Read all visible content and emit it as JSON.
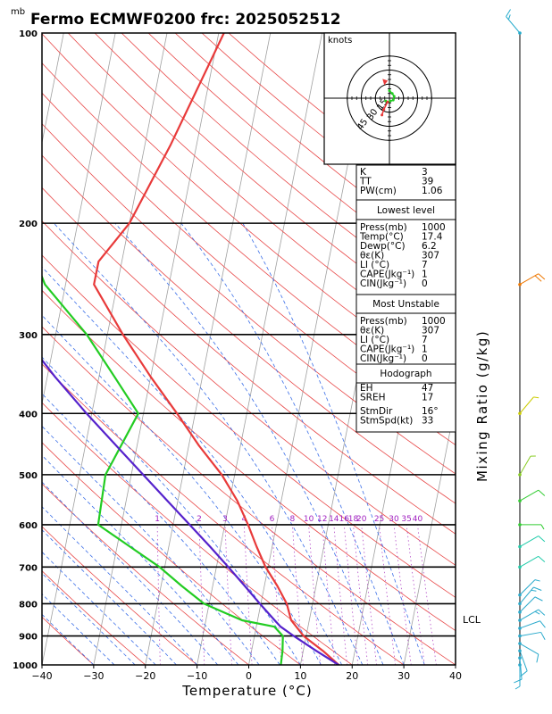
{
  "title": "Fermo  ECMWF0200  frc: 2025052512",
  "chart_data": {
    "type": "skew-t log-p sounding diagram",
    "xlabel": "Temperature (°C)",
    "ylabel": "mb",
    "right_axis_label": "Mixing Ratio (g/kg)",
    "xlim": [
      -40,
      40
    ],
    "ylim_mb": [
      1000,
      100
    ],
    "x_ticks": [
      "−40",
      "−30",
      "−20",
      "−10",
      "0",
      "10",
      "20",
      "30",
      "40"
    ],
    "x_tick_values": [
      -40,
      -30,
      -20,
      -10,
      0,
      10,
      20,
      30,
      40
    ],
    "pressure_ticks": [
      100,
      200,
      300,
      400,
      500,
      600,
      700,
      800,
      900,
      1000
    ],
    "mixing_ratio_labels": [
      "1",
      "2",
      "3",
      "4",
      "6",
      "8",
      "10",
      "12",
      "14",
      "16",
      "18",
      "20",
      "25",
      "30",
      "35",
      "40"
    ],
    "mixing_ratio_values": [
      1,
      2,
      3,
      4,
      6,
      8,
      10,
      12,
      14,
      16,
      18,
      20,
      25,
      30,
      35,
      40
    ],
    "lcl_label": "LCL",
    "lcl_pressure_mb": 870,
    "series": [
      {
        "name": "temperature",
        "color": "#e83a3a",
        "points": [
          [
            1000,
            17.4
          ],
          [
            950,
            13.8
          ],
          [
            900,
            9.5
          ],
          [
            850,
            6.5
          ],
          [
            800,
            5.0
          ],
          [
            750,
            2.5
          ],
          [
            700,
            -0.5
          ],
          [
            650,
            -3.0
          ],
          [
            600,
            -5.5
          ],
          [
            550,
            -8.5
          ],
          [
            500,
            -12.5
          ],
          [
            450,
            -18.0
          ],
          [
            400,
            -23.5
          ],
          [
            350,
            -30.0
          ],
          [
            300,
            -37.0
          ],
          [
            250,
            -44.5
          ],
          [
            230,
            -44.5
          ],
          [
            200,
            -40.0
          ],
          [
            150,
            -35.0
          ],
          [
            100,
            -29.0
          ]
        ]
      },
      {
        "name": "dewpoint",
        "color": "#22cc22",
        "points": [
          [
            1000,
            6.2
          ],
          [
            950,
            6.0
          ],
          [
            900,
            5.5
          ],
          [
            870,
            3.5
          ],
          [
            850,
            -3.0
          ],
          [
            800,
            -11.0
          ],
          [
            750,
            -16.0
          ],
          [
            700,
            -21.0
          ],
          [
            650,
            -27.5
          ],
          [
            600,
            -34.5
          ],
          [
            500,
            -35.0
          ],
          [
            400,
            -31.0
          ],
          [
            350,
            -37.0
          ],
          [
            300,
            -44.0
          ],
          [
            250,
            -54.0
          ],
          [
            200,
            -61.0
          ],
          [
            150,
            -70.0
          ],
          [
            100,
            -78.0
          ]
        ]
      },
      {
        "name": "parcel",
        "color": "#5522cc",
        "points": [
          [
            1000,
            17.4
          ],
          [
            950,
            12.5
          ],
          [
            900,
            7.6
          ],
          [
            870,
            4.7
          ],
          [
            850,
            3.3
          ],
          [
            800,
            -0.2
          ],
          [
            750,
            -3.8
          ],
          [
            700,
            -7.7
          ],
          [
            650,
            -12.0
          ],
          [
            600,
            -16.8
          ],
          [
            550,
            -22.0
          ],
          [
            500,
            -27.7
          ],
          [
            450,
            -34.0
          ],
          [
            400,
            -41.0
          ],
          [
            350,
            -48.5
          ],
          [
            300,
            -56.5
          ],
          [
            250,
            -65.5
          ],
          [
            200,
            -75.0
          ],
          [
            150,
            -86.0
          ],
          [
            100,
            -100.0
          ]
        ]
      }
    ],
    "winds": [
      {
        "p": 1000,
        "dir": 180,
        "spd": 5,
        "color": "#2aaacc"
      },
      {
        "p": 975,
        "dir": 175,
        "spd": 10,
        "color": "#2aaacc"
      },
      {
        "p": 950,
        "dir": 160,
        "spd": 10,
        "color": "#2aaacc"
      },
      {
        "p": 925,
        "dir": 120,
        "spd": 10,
        "color": "#2aaacc"
      },
      {
        "p": 900,
        "dir": 80,
        "spd": 10,
        "color": "#2aaacc"
      },
      {
        "p": 875,
        "dir": 70,
        "spd": 10,
        "color": "#2aaacc"
      },
      {
        "p": 850,
        "dir": 60,
        "spd": 15,
        "color": "#2aaacc"
      },
      {
        "p": 825,
        "dir": 45,
        "spd": 10,
        "color": "#2aaacc"
      },
      {
        "p": 800,
        "dir": 40,
        "spd": 15,
        "color": "#2aaacc"
      },
      {
        "p": 775,
        "dir": 45,
        "spd": 5,
        "color": "#2aaacc"
      },
      {
        "p": 700,
        "dir": 60,
        "spd": 10,
        "color": "#22ccaa"
      },
      {
        "p": 650,
        "dir": 60,
        "spd": 10,
        "color": "#22ccaa"
      },
      {
        "p": 600,
        "dir": 90,
        "spd": 5,
        "color": "#33cc33"
      },
      {
        "p": 550,
        "dir": 60,
        "spd": 10,
        "color": "#33cc33"
      },
      {
        "p": 500,
        "dir": 30,
        "spd": 5,
        "color": "#88cc22"
      },
      {
        "p": 400,
        "dir": 40,
        "spd": 5,
        "color": "#cccc00"
      },
      {
        "p": 250,
        "dir": 60,
        "spd": 20,
        "color": "#ee7700"
      },
      {
        "p": 100,
        "dir": 320,
        "spd": 15,
        "color": "#22aacc"
      }
    ],
    "hodograph": {
      "units": "knots",
      "ring_labels": [
        "15",
        "30",
        "45"
      ],
      "ring_values": [
        15,
        30,
        45
      ],
      "storm_motion": {
        "dir": 16,
        "spd": 33
      },
      "segments": [
        {
          "color": "#22cc22",
          "points": [
            [
              0,
              -8
            ],
            [
              3,
              -5
            ],
            [
              5,
              -2
            ],
            [
              4,
              2
            ],
            [
              1,
              3
            ],
            [
              -2,
              4
            ],
            [
              -4,
              3
            ]
          ]
        },
        {
          "color": "#e83a3a",
          "points": [
            [
              -2,
              4
            ],
            [
              -6,
              12
            ],
            [
              -8,
              18
            ]
          ]
        }
      ]
    }
  },
  "panels": {
    "basic": [
      {
        "label": "K",
        "value": "3"
      },
      {
        "label": "TT",
        "value": "39"
      },
      {
        "label": "PW(cm)",
        "value": "1.06"
      }
    ],
    "lowest": {
      "title": "Lowest level",
      "rows": [
        {
          "label": "Press(mb)",
          "value": "1000"
        },
        {
          "label": "Temp(°C)",
          "value": "17.4"
        },
        {
          "label": "Dewp(°C)",
          "value": "6.2"
        },
        {
          "label": "θε(K)",
          "value": "307"
        },
        {
          "label": "LI (°C)",
          "value": "7"
        },
        {
          "label": "CAPE(Jkg⁻¹)",
          "value": "1"
        },
        {
          "label": "CIN(Jkg⁻¹)",
          "value": "0"
        }
      ]
    },
    "unstable": {
      "title": "Most Unstable",
      "rows": [
        {
          "label": "Press(mb)",
          "value": "1000"
        },
        {
          "label": "θε(K)",
          "value": "307"
        },
        {
          "label": "LI (°C)",
          "value": "7"
        },
        {
          "label": "CAPE(Jkg⁻¹)",
          "value": "1"
        },
        {
          "label": "CIN(Jkg⁻¹)",
          "value": "0"
        }
      ]
    },
    "hodograph": {
      "title": "Hodograph",
      "rows": [
        {
          "label": "EH",
          "value": "47"
        },
        {
          "label": "SREH",
          "value": "17"
        },
        {
          "label": "StmDir",
          "value": "16°"
        },
        {
          "label": "StmSpd(kt)",
          "value": "33"
        }
      ]
    }
  },
  "colors": {
    "dry_adiabat": "#e84a4a",
    "moist_adiabat": "#3a6ee8",
    "mixing_ratio": "#b44ec8",
    "isotherm": "#a0a0a0",
    "mixing_label": "#a020c0"
  }
}
